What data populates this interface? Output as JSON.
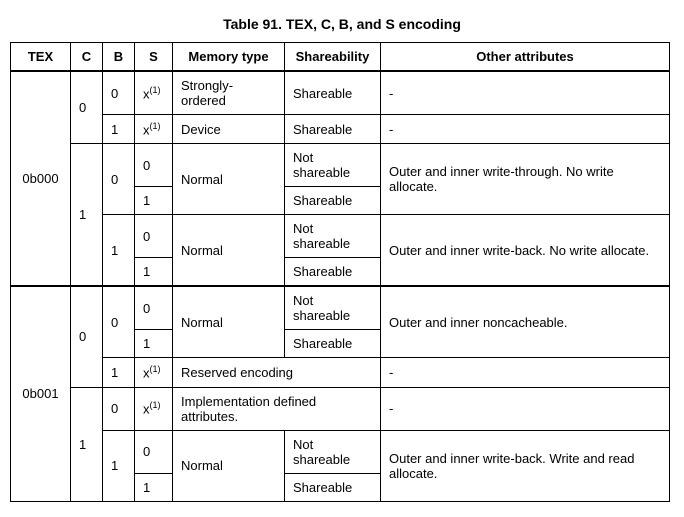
{
  "caption": "Table 91. TEX, C, B, and S encoding",
  "headers": {
    "tex": "TEX",
    "c": "C",
    "b": "B",
    "s": "S",
    "mem": "Memory type",
    "share": "Shareability",
    "other": "Other attributes"
  },
  "tex": {
    "v0": "0b000",
    "v1": "0b001"
  },
  "c": {
    "v0": "0",
    "v1": "1"
  },
  "b": {
    "v0": "0",
    "v1": "1"
  },
  "s": {
    "v0": "0",
    "v1": "1",
    "x1": "x",
    "sup": "(1)"
  },
  "mem": {
    "strongly": "Strongly-ordered",
    "device": "Device",
    "normal": "Normal",
    "reserved": "Reserved encoding",
    "impl": "Implementation defined attributes."
  },
  "share": {
    "shareable": "Shareable",
    "not": "Not shareable"
  },
  "other": {
    "dash": "-",
    "wt": "Outer and inner write-through. No write allocate.",
    "wb": "Outer and inner write-back. No write allocate.",
    "nc": "Outer and inner noncacheable.",
    "wbra": "Outer and inner write-back. Write and read allocate."
  }
}
